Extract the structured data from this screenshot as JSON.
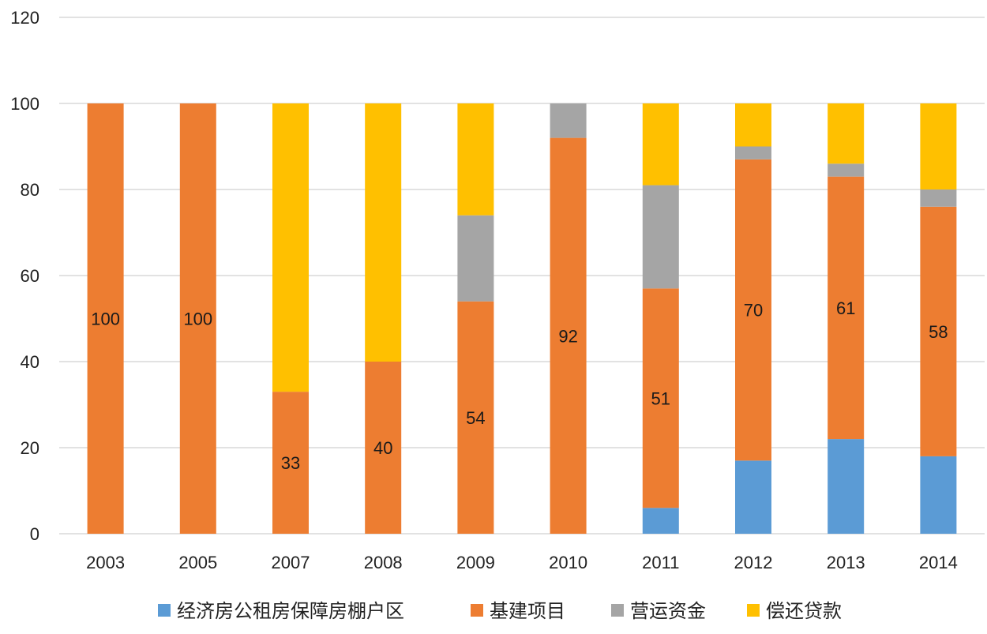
{
  "chart_data": {
    "type": "bar",
    "stacked": true,
    "categories": [
      "2003",
      "2005",
      "2007",
      "2008",
      "2009",
      "2010",
      "2011",
      "2012",
      "2013",
      "2014"
    ],
    "series": [
      {
        "name": "经济房公租房保障房棚户区",
        "color": "#5B9BD5",
        "values": [
          0,
          0,
          0,
          0,
          0,
          0,
          6,
          17,
          22,
          18
        ]
      },
      {
        "name": "基建项目",
        "color": "#ED7D31",
        "values": [
          100,
          100,
          33,
          40,
          54,
          92,
          51,
          70,
          61,
          58
        ]
      },
      {
        "name": "营运资金",
        "color": "#A5A5A5",
        "values": [
          0,
          0,
          0,
          0,
          20,
          8,
          24,
          3,
          3,
          4
        ]
      },
      {
        "name": "偿还贷款",
        "color": "#FFC000",
        "values": [
          0,
          0,
          67,
          60,
          26,
          0,
          19,
          10,
          14,
          20
        ]
      }
    ],
    "data_labels": {
      "series": "基建项目",
      "values": [
        "100",
        "100",
        "33",
        "40",
        "54",
        "92",
        "51",
        "70",
        "61",
        "58"
      ]
    },
    "y_ticks": [
      "0",
      "20",
      "40",
      "60",
      "80",
      "100",
      "120"
    ],
    "ylim": [
      0,
      120
    ],
    "grid": true,
    "legend": "bottom",
    "title": "",
    "xlabel": "",
    "ylabel": ""
  }
}
